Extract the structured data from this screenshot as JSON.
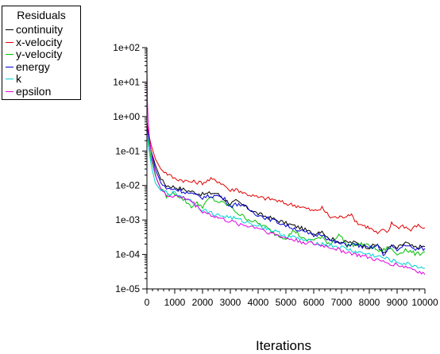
{
  "chart_data": {
    "type": "line",
    "title": "",
    "xlabel": "Iterations",
    "ylabel": "",
    "yscale": "log",
    "xlim": [
      0,
      10000
    ],
    "ylim": [
      1e-05,
      100
    ],
    "x_ticks": [
      "0",
      "1000",
      "2000",
      "3000",
      "4000",
      "5000",
      "6000",
      "7000",
      "8000",
      "9000",
      "10000"
    ],
    "y_ticks": [
      "1e-05",
      "1e-04",
      "1e-03",
      "1e-02",
      "1e-01",
      "1e+00",
      "1e+01",
      "1e+02"
    ],
    "grid": false,
    "legend": {
      "title": "Residuals",
      "placement": "top-left",
      "entries": [
        "continuity",
        "x-velocity",
        "y-velocity",
        "energy",
        "k",
        "epsilon"
      ]
    },
    "series": [
      {
        "name": "continuity",
        "color": "#000000",
        "points": [
          [
            0,
            0.5
          ],
          [
            50,
            0.3
          ],
          [
            150,
            0.1
          ],
          [
            300,
            0.04
          ],
          [
            500,
            0.015
          ],
          [
            700,
            0.01
          ],
          [
            1000,
            0.009
          ],
          [
            1500,
            0.007
          ],
          [
            2000,
            0.0055
          ],
          [
            2300,
            0.006
          ],
          [
            2500,
            0.006
          ],
          [
            2700,
            0.0045
          ],
          [
            3000,
            0.003
          ],
          [
            3200,
            0.0035
          ],
          [
            3500,
            0.0025
          ],
          [
            4000,
            0.0015
          ],
          [
            4500,
            0.0011
          ],
          [
            5000,
            0.0008
          ],
          [
            5500,
            0.0006
          ],
          [
            6000,
            0.0004
          ],
          [
            6300,
            0.0005
          ],
          [
            6500,
            0.0003
          ],
          [
            7000,
            0.00023
          ],
          [
            7500,
            0.00022
          ],
          [
            8000,
            0.00016
          ],
          [
            8300,
            0.0002
          ],
          [
            8500,
            0.00011
          ],
          [
            8800,
            0.00018
          ],
          [
            9000,
            0.00015
          ],
          [
            9300,
            0.00022
          ],
          [
            9600,
            0.00016
          ],
          [
            10000,
            0.00017
          ]
        ]
      },
      {
        "name": "x-velocity",
        "color": "#e00000",
        "points": [
          [
            0,
            0.7
          ],
          [
            50,
            0.35
          ],
          [
            150,
            0.15
          ],
          [
            300,
            0.06
          ],
          [
            500,
            0.03
          ],
          [
            800,
            0.02
          ],
          [
            1000,
            0.016
          ],
          [
            1500,
            0.013
          ],
          [
            2000,
            0.012
          ],
          [
            2300,
            0.015
          ],
          [
            2600,
            0.013
          ],
          [
            2800,
            0.01
          ],
          [
            3000,
            0.007
          ],
          [
            3200,
            0.008
          ],
          [
            3500,
            0.006
          ],
          [
            4000,
            0.0045
          ],
          [
            4500,
            0.004
          ],
          [
            5000,
            0.003
          ],
          [
            5500,
            0.0025
          ],
          [
            6000,
            0.0018
          ],
          [
            6300,
            0.0022
          ],
          [
            6600,
            0.0012
          ],
          [
            7000,
            0.0012
          ],
          [
            7300,
            0.0015
          ],
          [
            7600,
            0.0008
          ],
          [
            8000,
            0.0006
          ],
          [
            8300,
            0.0004
          ],
          [
            8500,
            0.0005
          ],
          [
            8700,
            0.00045
          ],
          [
            8800,
            0.0009
          ],
          [
            9000,
            0.0006
          ],
          [
            9200,
            0.0007
          ],
          [
            9500,
            0.0005
          ],
          [
            9700,
            0.0007
          ],
          [
            10000,
            0.0006
          ]
        ]
      },
      {
        "name": "y-velocity",
        "color": "#00c000",
        "points": [
          [
            0,
            0.3
          ],
          [
            50,
            0.2
          ],
          [
            150,
            0.06
          ],
          [
            300,
            0.02
          ],
          [
            500,
            0.008
          ],
          [
            700,
            0.005
          ],
          [
            1000,
            0.006
          ],
          [
            1300,
            0.004
          ],
          [
            1600,
            0.0025
          ],
          [
            1800,
            0.003
          ],
          [
            2000,
            0.0025
          ],
          [
            2300,
            0.0045
          ],
          [
            2500,
            0.0035
          ],
          [
            2800,
            0.003
          ],
          [
            3000,
            0.0025
          ],
          [
            3300,
            0.0015
          ],
          [
            3600,
            0.0011
          ],
          [
            4000,
            0.0008
          ],
          [
            4300,
            0.0006
          ],
          [
            4600,
            0.0004
          ],
          [
            5000,
            0.0003
          ],
          [
            5300,
            0.0005
          ],
          [
            5700,
            0.00025
          ],
          [
            6000,
            0.00028
          ],
          [
            6300,
            0.0003
          ],
          [
            6600,
            0.0002
          ],
          [
            6900,
            0.0004
          ],
          [
            7200,
            0.00018
          ],
          [
            7600,
            0.0002
          ],
          [
            8000,
            0.00018
          ],
          [
            8400,
            0.00012
          ],
          [
            8700,
            0.00016
          ],
          [
            9000,
            0.0001
          ],
          [
            9300,
            0.00014
          ],
          [
            9700,
            0.0001
          ],
          [
            10000,
            0.00012
          ]
        ]
      },
      {
        "name": "energy",
        "color": "#0000d0",
        "points": [
          [
            0,
            0.5
          ],
          [
            50,
            0.3
          ],
          [
            150,
            0.1
          ],
          [
            300,
            0.03
          ],
          [
            500,
            0.012
          ],
          [
            700,
            0.008
          ],
          [
            1000,
            0.008
          ],
          [
            1500,
            0.006
          ],
          [
            2000,
            0.0045
          ],
          [
            2300,
            0.005
          ],
          [
            2600,
            0.005
          ],
          [
            2800,
            0.004
          ],
          [
            3000,
            0.0025
          ],
          [
            3300,
            0.003
          ],
          [
            3600,
            0.0022
          ],
          [
            4000,
            0.0014
          ],
          [
            4500,
            0.001
          ],
          [
            5000,
            0.0007
          ],
          [
            5500,
            0.0005
          ],
          [
            6000,
            0.00035
          ],
          [
            6300,
            0.0004
          ],
          [
            6600,
            0.00025
          ],
          [
            7000,
            0.0002
          ],
          [
            7500,
            0.00019
          ],
          [
            8000,
            0.00015
          ],
          [
            8300,
            0.00018
          ],
          [
            8500,
            0.0001
          ],
          [
            8800,
            0.00017
          ],
          [
            9000,
            0.00013
          ],
          [
            9300,
            0.0002
          ],
          [
            9600,
            0.00014
          ],
          [
            10000,
            0.00015
          ]
        ]
      },
      {
        "name": "k",
        "color": "#00d0d0",
        "points": [
          [
            0,
            0.4
          ],
          [
            50,
            0.15
          ],
          [
            150,
            0.04
          ],
          [
            300,
            0.012
          ],
          [
            500,
            0.007
          ],
          [
            800,
            0.006
          ],
          [
            1000,
            0.006
          ],
          [
            1500,
            0.004
          ],
          [
            2000,
            0.002
          ],
          [
            2500,
            0.0014
          ],
          [
            3000,
            0.0012
          ],
          [
            3500,
            0.0009
          ],
          [
            4000,
            0.0007
          ],
          [
            4500,
            0.0005
          ],
          [
            5000,
            0.00035
          ],
          [
            5500,
            0.00028
          ],
          [
            6000,
            0.00022
          ],
          [
            6500,
            0.00019
          ],
          [
            7000,
            0.00016
          ],
          [
            7500,
            0.00012
          ],
          [
            8000,
            0.0001
          ],
          [
            8500,
            8e-05
          ],
          [
            9000,
            6e-05
          ],
          [
            9500,
            5e-05
          ],
          [
            10000,
            4e-05
          ]
        ]
      },
      {
        "name": "epsilon",
        "color": "#e000e0",
        "points": [
          [
            0,
            40
          ],
          [
            15,
            3
          ],
          [
            40,
            0.8
          ],
          [
            100,
            0.2
          ],
          [
            200,
            0.05
          ],
          [
            350,
            0.015
          ],
          [
            500,
            0.008
          ],
          [
            700,
            0.005
          ],
          [
            1000,
            0.005
          ],
          [
            1500,
            0.004
          ],
          [
            2000,
            0.0018
          ],
          [
            2500,
            0.0012
          ],
          [
            3000,
            0.0009
          ],
          [
            3500,
            0.0007
          ],
          [
            4000,
            0.0006
          ],
          [
            4500,
            0.0004
          ],
          [
            5000,
            0.0003
          ],
          [
            5500,
            0.00024
          ],
          [
            6000,
            0.0002
          ],
          [
            6500,
            0.00017
          ],
          [
            7000,
            0.00013
          ],
          [
            7500,
            0.0001
          ],
          [
            8000,
            8e-05
          ],
          [
            8500,
            6e-05
          ],
          [
            9000,
            5e-05
          ],
          [
            9500,
            4e-05
          ],
          [
            10000,
            2.6e-05
          ]
        ]
      }
    ]
  }
}
